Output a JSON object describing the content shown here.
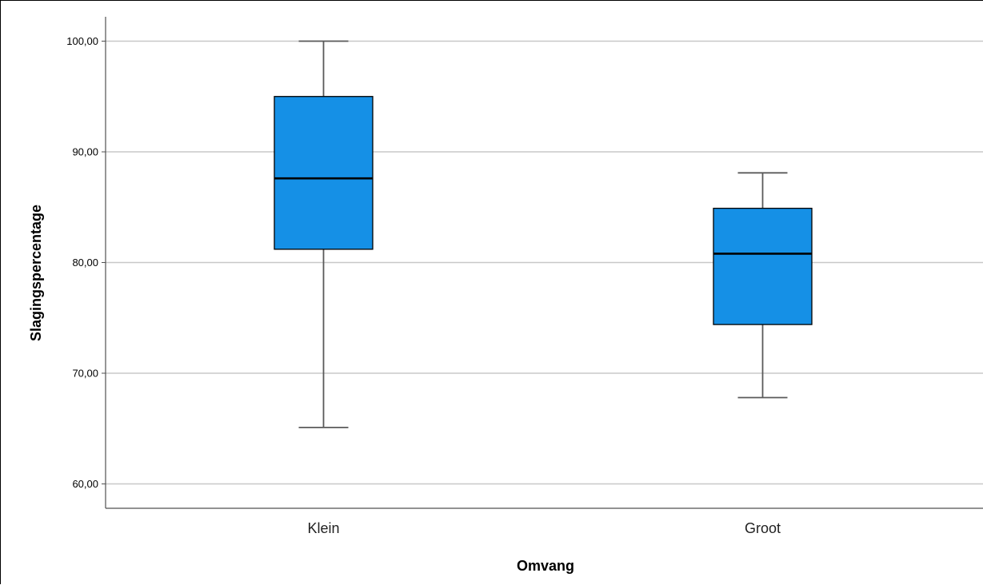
{
  "chart_data": {
    "type": "boxplot",
    "xlabel": "Omvang",
    "ylabel": "Slagingspercentage",
    "categories": [
      "Klein",
      "Groot"
    ],
    "boxes": [
      {
        "category": "Klein",
        "min": 65.1,
        "q1": 81.2,
        "median": 87.6,
        "q3": 95.0,
        "max": 100.0
      },
      {
        "category": "Groot",
        "min": 67.8,
        "q1": 74.4,
        "median": 80.8,
        "q3": 84.9,
        "max": 88.1
      }
    ],
    "ylim": [
      57.8,
      102.2
    ],
    "yticks": [
      60,
      70,
      80,
      90,
      100
    ],
    "ytick_labels": [
      "60,00",
      "70,00",
      "80,00",
      "90,00",
      "100,00"
    ],
    "grid": true,
    "colors": {
      "box_fill": "#1590e6",
      "box_stroke": "#000000",
      "median": "#000000",
      "whisker": "#5a5a5a",
      "grid": "#c8c8c8",
      "axis": "#505050"
    }
  }
}
